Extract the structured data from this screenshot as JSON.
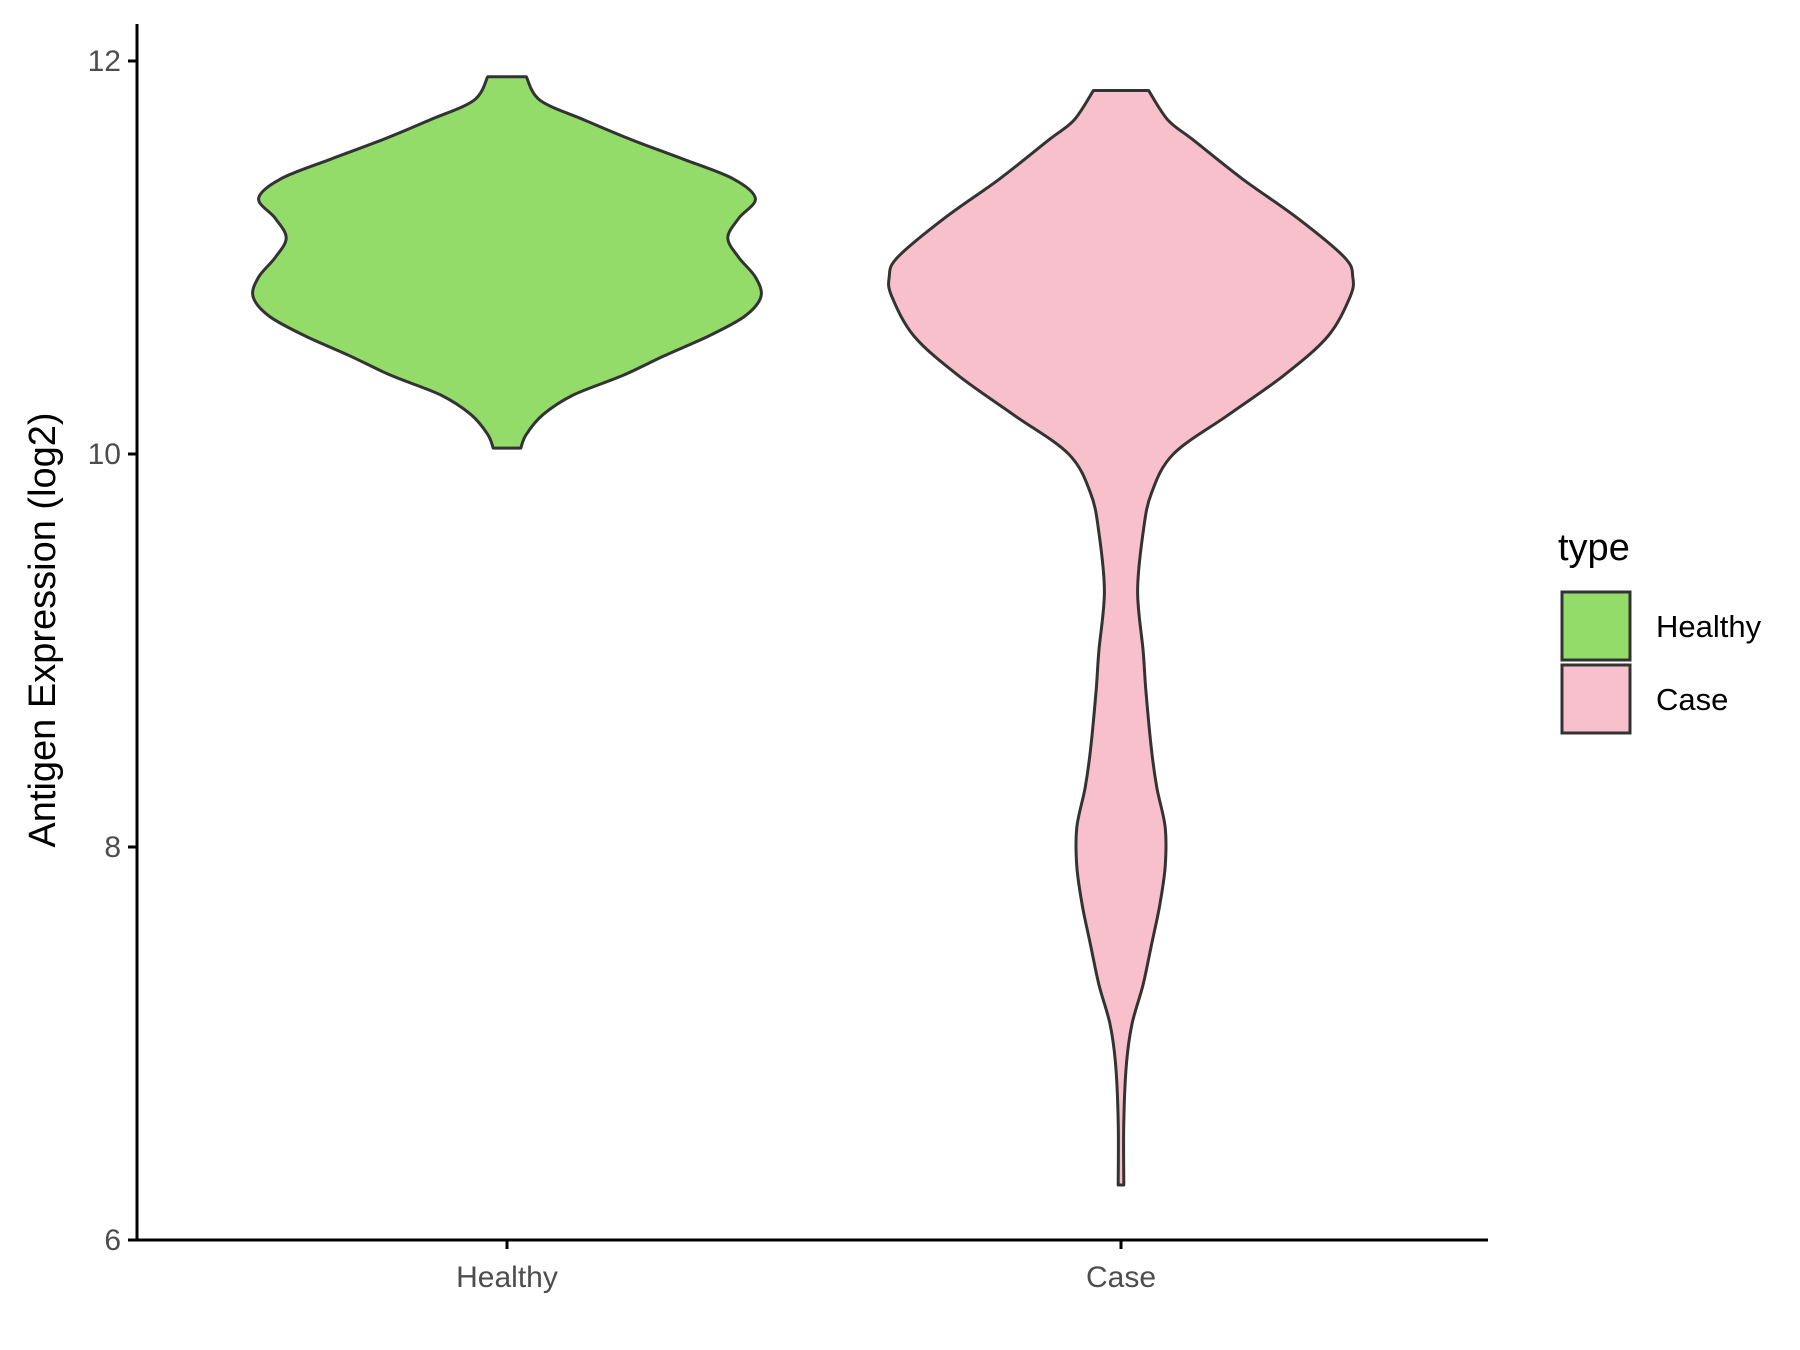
{
  "chart_data": {
    "type": "violin",
    "ylabel": "Antigen Expression (log2)",
    "xlabel": "",
    "ylim": [
      6,
      12.2
    ],
    "yticks": [
      6,
      8,
      10,
      12
    ],
    "grid": false,
    "legend": {
      "title": "type",
      "position": "right",
      "entries": [
        "Healthy",
        "Case"
      ]
    },
    "categories": [
      "Healthy",
      "Case"
    ],
    "series": [
      {
        "name": "Healthy",
        "color": "#93dc69",
        "min": 10.03,
        "max": 11.92,
        "density_profile": [
          [
            10.03,
            0.05
          ],
          [
            10.1,
            0.07
          ],
          [
            10.2,
            0.13
          ],
          [
            10.3,
            0.24
          ],
          [
            10.4,
            0.42
          ],
          [
            10.5,
            0.57
          ],
          [
            10.6,
            0.73
          ],
          [
            10.7,
            0.86
          ],
          [
            10.8,
            0.92
          ],
          [
            10.9,
            0.9
          ],
          [
            11.0,
            0.84
          ],
          [
            11.1,
            0.8
          ],
          [
            11.2,
            0.84
          ],
          [
            11.3,
            0.9
          ],
          [
            11.4,
            0.82
          ],
          [
            11.5,
            0.64
          ],
          [
            11.6,
            0.45
          ],
          [
            11.7,
            0.28
          ],
          [
            11.8,
            0.12
          ],
          [
            11.92,
            0.07
          ]
        ]
      },
      {
        "name": "Case",
        "color": "#f8c0cc",
        "min": 6.28,
        "max": 11.85,
        "density_profile": [
          [
            6.28,
            0.01
          ],
          [
            6.6,
            0.01
          ],
          [
            6.9,
            0.02
          ],
          [
            7.1,
            0.04
          ],
          [
            7.3,
            0.08
          ],
          [
            7.5,
            0.11
          ],
          [
            7.7,
            0.14
          ],
          [
            7.9,
            0.16
          ],
          [
            8.1,
            0.16
          ],
          [
            8.3,
            0.13
          ],
          [
            8.5,
            0.11
          ],
          [
            8.8,
            0.09
          ],
          [
            9.0,
            0.08
          ],
          [
            9.3,
            0.06
          ],
          [
            9.6,
            0.08
          ],
          [
            9.8,
            0.11
          ],
          [
            10.0,
            0.19
          ],
          [
            10.2,
            0.39
          ],
          [
            10.4,
            0.59
          ],
          [
            10.6,
            0.75
          ],
          [
            10.8,
            0.83
          ],
          [
            10.9,
            0.84
          ],
          [
            11.0,
            0.81
          ],
          [
            11.2,
            0.64
          ],
          [
            11.4,
            0.44
          ],
          [
            11.6,
            0.26
          ],
          [
            11.7,
            0.17
          ],
          [
            11.85,
            0.1
          ]
        ]
      }
    ]
  }
}
